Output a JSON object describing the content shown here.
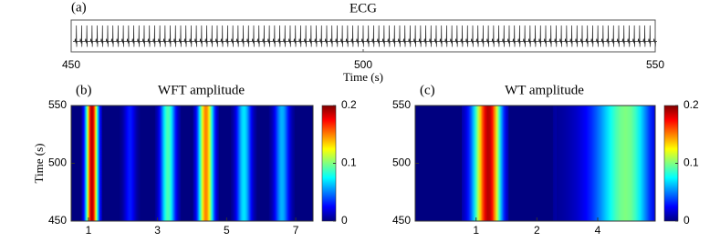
{
  "chart_data": [
    {
      "type": "line",
      "label": "(a)",
      "title": "ECG",
      "xlabel": "Time (s)",
      "xlim": [
        450,
        550
      ],
      "xticks": [
        450,
        500,
        550
      ]
    },
    {
      "type": "heatmap",
      "label": "(b)",
      "title": "WFT amplitude",
      "ylabel": "Time (s)",
      "xscale": "linear",
      "xlim": [
        0.5,
        7.5
      ],
      "xticks": [
        1,
        3,
        5,
        7
      ],
      "ylim": [
        450,
        550
      ],
      "yticks": [
        450,
        500,
        550
      ],
      "zlim": [
        0,
        0.2
      ],
      "zticks": [
        0,
        0.1,
        0.2
      ],
      "colormap": "jet",
      "ridges": [
        {
          "x": 1.1,
          "width": 0.12,
          "z": 0.19
        },
        {
          "x": 2.2,
          "width": 0.12,
          "z": 0.03
        },
        {
          "x": 3.3,
          "width": 0.15,
          "z": 0.09
        },
        {
          "x": 4.4,
          "width": 0.15,
          "z": 0.15
        },
        {
          "x": 5.5,
          "width": 0.15,
          "z": 0.07
        },
        {
          "x": 6.6,
          "width": 0.15,
          "z": 0.06
        }
      ]
    },
    {
      "type": "heatmap",
      "label": "(c)",
      "title": "WT amplitude",
      "xscale": "log",
      "xlim": [
        0.5,
        7.7
      ],
      "xticks": [
        1,
        2,
        4
      ],
      "ylim": [
        450,
        550
      ],
      "yticks": [
        450,
        500,
        550
      ],
      "zlim": [
        0,
        0.2
      ],
      "zticks": [
        0,
        0.1,
        0.2
      ],
      "colormap": "jet",
      "ridges": [
        {
          "x": 1.15,
          "width": 0.12,
          "z": 0.19
        },
        {
          "x": 3.4,
          "width": 0.4,
          "z": 0.1
        },
        {
          "x": 5.5,
          "width": 1.2,
          "z": 0.1
        }
      ]
    }
  ]
}
